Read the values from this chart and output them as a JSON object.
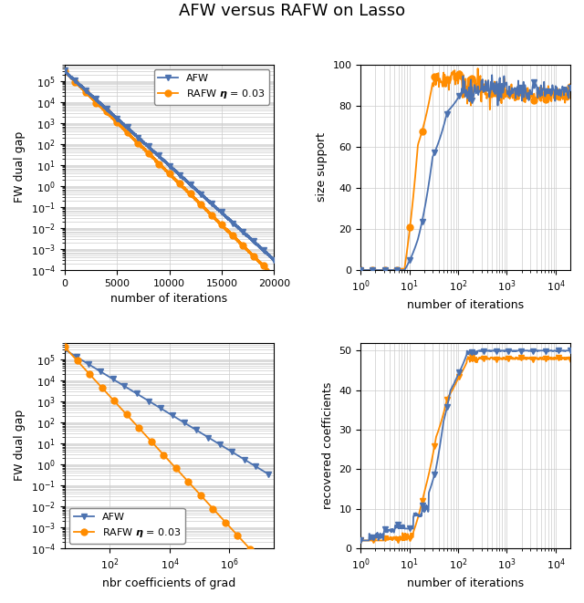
{
  "title": "AFW versus RAFW on Lasso",
  "title_fontsize": 13,
  "afw_color": "#4C72B0",
  "rafw_color": "#FF8C00",
  "afw_label": "AFW",
  "rafw_label": "RAFW $\\boldsymbol{\\eta}$ = 0.03",
  "background_color": "#ffffff",
  "grid_color": "#cccccc",
  "figwidth": 6.4,
  "figheight": 6.61,
  "dpi": 100
}
